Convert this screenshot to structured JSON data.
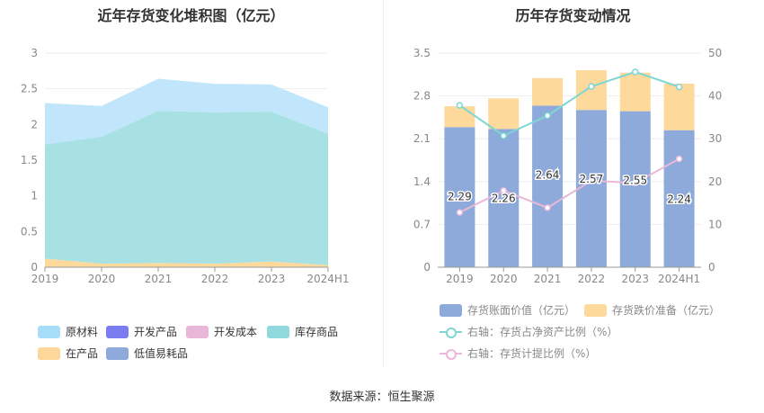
{
  "chart_data": [
    {
      "type": "area",
      "title": "近年存货变化堆积图（亿元）",
      "categories": [
        "2019",
        "2020",
        "2021",
        "2022",
        "2023",
        "2024H1"
      ],
      "ylim": [
        0,
        3
      ],
      "yticks": [
        "0",
        "0.5",
        "1",
        "1.5",
        "2",
        "2.5",
        "3"
      ],
      "stacked": true,
      "series": [
        {
          "name": "在产品",
          "color": "#fdd99b",
          "values": [
            0.12,
            0.05,
            0.06,
            0.05,
            0.08,
            0.03
          ]
        },
        {
          "name": "库存商品",
          "color": "#a8e1e4",
          "values": [
            1.6,
            1.78,
            2.13,
            2.12,
            2.1,
            1.84
          ]
        },
        {
          "name": "原材料",
          "color": "#c1e6fb",
          "values": [
            0.58,
            0.43,
            0.45,
            0.4,
            0.38,
            0.37
          ]
        },
        {
          "name": "开发产品",
          "color": "#7d7ef1",
          "values": [
            0,
            0,
            0,
            0,
            0,
            0
          ]
        },
        {
          "name": "开发成本",
          "color": "#e9b8d8",
          "values": [
            0,
            0,
            0,
            0,
            0,
            0
          ]
        },
        {
          "name": "低值易耗品",
          "color": "#8eaadb",
          "values": [
            0,
            0,
            0,
            0,
            0,
            0
          ]
        }
      ],
      "legend": [
        {
          "name": "原材料",
          "color": "#a6defa"
        },
        {
          "name": "开发产品",
          "color": "#7b7cf0"
        },
        {
          "name": "开发成本",
          "color": "#e8b6d6"
        },
        {
          "name": "库存商品",
          "color": "#8fd8dc"
        },
        {
          "name": "在产品",
          "color": "#fdd79a"
        },
        {
          "name": "低值易耗品",
          "color": "#8eaadb"
        }
      ],
      "legend_position": "bottom"
    },
    {
      "type": "bar",
      "title": "历年存货变动情况",
      "categories": [
        "2019",
        "2020",
        "2021",
        "2022",
        "2023",
        "2024H1"
      ],
      "ylim": [
        0,
        3.5
      ],
      "yticks": [
        "0",
        "0.7",
        "1.4",
        "2.1",
        "2.8",
        "3.5"
      ],
      "y2lim": [
        0,
        50
      ],
      "y2ticks": [
        "0",
        "10",
        "20",
        "30",
        "40",
        "50"
      ],
      "series": [
        {
          "name": "存货账面价值（亿元）",
          "type": "bar",
          "color": "#8eaadb",
          "values": [
            2.29,
            2.26,
            2.64,
            2.57,
            2.55,
            2.24
          ],
          "labels": [
            "2.29",
            "2.26",
            "2.64",
            "2.57",
            "2.55",
            "2.24"
          ]
        },
        {
          "name": "存货跌价准备（亿元）",
          "type": "bar",
          "color": "#fdd99b",
          "values": [
            0.34,
            0.5,
            0.45,
            0.65,
            0.63,
            0.76
          ]
        },
        {
          "name": "右轴：存货占净资产比例（%）",
          "type": "line",
          "axis": "right",
          "color": "#7ed6d3",
          "values": [
            37.8,
            30.7,
            35.4,
            42.2,
            45.6,
            42.1
          ]
        },
        {
          "name": "右轴：存货计提比例（%）",
          "type": "line",
          "axis": "right",
          "color": "#e9b8d8",
          "values": [
            12.8,
            17.9,
            13.9,
            20.2,
            19.7,
            25.3
          ]
        }
      ],
      "legend_position": "bottom"
    }
  ],
  "source": "数据来源：恒生聚源"
}
